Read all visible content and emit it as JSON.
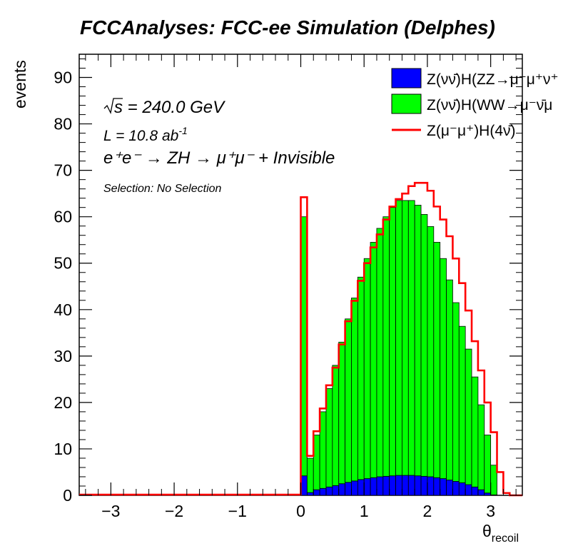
{
  "chart_data": {
    "type": "bar",
    "title": "FCCAnalyses: FCC-ee Simulation (Delphes)",
    "xlabel": "θrecoil",
    "xlabel_main": "θ",
    "xlabel_sub": "recoil",
    "ylabel": "events",
    "xlim": [
      -3.5,
      3.5
    ],
    "ylim": [
      0,
      95
    ],
    "xticks": [
      -3,
      -2,
      -1,
      0,
      1,
      2,
      3
    ],
    "xtick_labels": [
      "−3",
      "−2",
      "−1",
      "0",
      "1",
      "2",
      "3"
    ],
    "yticks": [
      0,
      10,
      20,
      30,
      40,
      50,
      60,
      70,
      80,
      90
    ],
    "ytick_labels": [
      "0",
      "10",
      "20",
      "30",
      "40",
      "50",
      "60",
      "70",
      "80",
      "90"
    ],
    "bin_width": 0.1,
    "bin_start": 0.0,
    "stacked": true,
    "series": [
      {
        "name": "Z(νν̄)H(ZZ→μ⁻μ⁺ν⁺",
        "kind": "stack-fill",
        "color": "#0000ff",
        "values": [
          4.2,
          0.6,
          1.2,
          1.5,
          1.8,
          2.1,
          2.5,
          2.8,
          3.1,
          3.4,
          3.6,
          3.8,
          4.0,
          4.1,
          4.2,
          4.3,
          4.3,
          4.3,
          4.2,
          4.1,
          4.0,
          3.8,
          3.6,
          3.3,
          3.0,
          2.7,
          2.3,
          1.8,
          1.2,
          0.5,
          0.1,
          0,
          0,
          0,
          0
        ]
      },
      {
        "name": "Z(νν̄)H(WW→μ⁻ν̄μ",
        "kind": "stack-fill",
        "color": "#00ff00",
        "values": [
          55.8,
          7.4,
          11.8,
          16.5,
          21.2,
          25.9,
          30.5,
          35.2,
          39.4,
          43.6,
          47.4,
          50.7,
          53.5,
          55.9,
          57.8,
          59.2,
          59.2,
          59.2,
          58.3,
          56.4,
          53.9,
          50.7,
          47.4,
          43.1,
          38.5,
          33.7,
          29.2,
          23.7,
          18.3,
          12.5,
          6.4,
          0,
          0,
          0,
          0
        ]
      },
      {
        "name": "Z(μ⁻μ⁺)H(4ν̄)",
        "kind": "line",
        "color": "#ff0000",
        "values": [
          64.2,
          8.5,
          13.8,
          18.7,
          23.7,
          27.5,
          32.5,
          37.5,
          41.9,
          46.2,
          50.0,
          53.4,
          56.2,
          59.4,
          62.2,
          63.8,
          65.0,
          66.6,
          67.3,
          67.3,
          65.6,
          62.2,
          59.4,
          55.8,
          51.0,
          45.7,
          39.8,
          33.2,
          26.9,
          20.0,
          13.6,
          5.0,
          0.5,
          0,
          0
        ]
      }
    ]
  },
  "annotations": {
    "sqrt_s": "√s = 240.0 GeV",
    "sqrt_sym": "s",
    "sqrt_rest": " = 240.0 GeV",
    "lumi": "L = 10.8 ab⁻¹",
    "lumi_main": "L = 10.8 ab",
    "lumi_sup": "-1",
    "process": "e⁺e⁻ → ZH → μ⁺μ⁻ + Invisible",
    "selection": "Selection: No Selection"
  },
  "legend": {
    "placement": "top-right",
    "entries": [
      "Z(νν̄)H(ZZ→μ⁻μ⁺ν⁺",
      "Z(νν̄)H(WW→μ⁻ν̄μ",
      "Z(μ⁻μ⁺)H(4ν̄)"
    ]
  },
  "colors": {
    "zz": "#0000ff",
    "ww": "#00ff00",
    "mumu": "#ff0000",
    "frame": "#000000"
  }
}
